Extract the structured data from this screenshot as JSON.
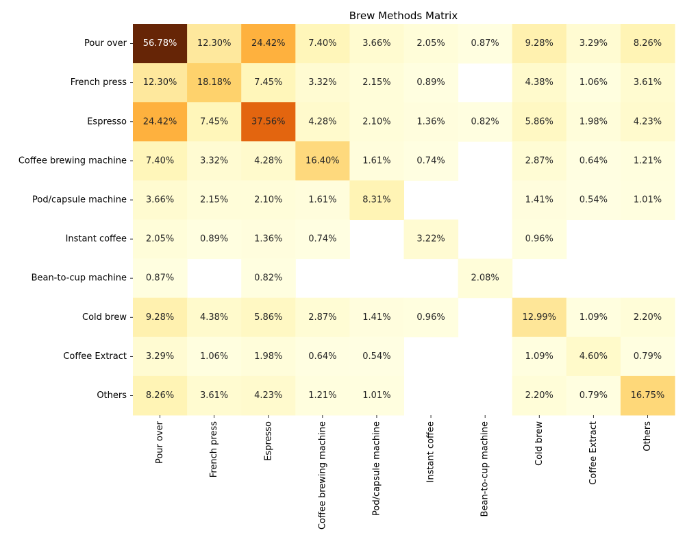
{
  "chart_data": {
    "type": "heatmap",
    "title": "Brew Methods Matrix",
    "categories": [
      "Pour over",
      "French press",
      "Espresso",
      "Coffee brewing machine",
      "Pod/capsule machine",
      "Instant coffee",
      "Bean-to-cup machine",
      "Cold brew",
      "Coffee Extract",
      "Others"
    ],
    "value_format": "percent_2dp",
    "colormap": "YlOrBr",
    "color_range": [
      0,
      56.78
    ],
    "colorbar": false,
    "grid": false,
    "values": [
      [
        56.78,
        12.3,
        24.42,
        7.4,
        3.66,
        2.05,
        0.87,
        9.28,
        3.29,
        8.26
      ],
      [
        12.3,
        18.18,
        7.45,
        3.32,
        2.15,
        0.89,
        null,
        4.38,
        1.06,
        3.61
      ],
      [
        24.42,
        7.45,
        37.56,
        4.28,
        2.1,
        1.36,
        0.82,
        5.86,
        1.98,
        4.23
      ],
      [
        7.4,
        3.32,
        4.28,
        16.4,
        1.61,
        0.74,
        null,
        2.87,
        0.64,
        1.21
      ],
      [
        3.66,
        2.15,
        2.1,
        1.61,
        8.31,
        null,
        null,
        1.41,
        0.54,
        1.01
      ],
      [
        2.05,
        0.89,
        1.36,
        0.74,
        null,
        3.22,
        null,
        0.96,
        null,
        null
      ],
      [
        0.87,
        null,
        0.82,
        null,
        null,
        null,
        2.08,
        null,
        null,
        null
      ],
      [
        9.28,
        4.38,
        5.86,
        2.87,
        1.41,
        0.96,
        null,
        12.99,
        1.09,
        2.2
      ],
      [
        3.29,
        1.06,
        1.98,
        0.64,
        0.54,
        null,
        null,
        1.09,
        4.6,
        0.79
      ],
      [
        8.26,
        3.61,
        4.23,
        1.21,
        1.01,
        null,
        null,
        2.2,
        0.79,
        16.75
      ]
    ]
  }
}
